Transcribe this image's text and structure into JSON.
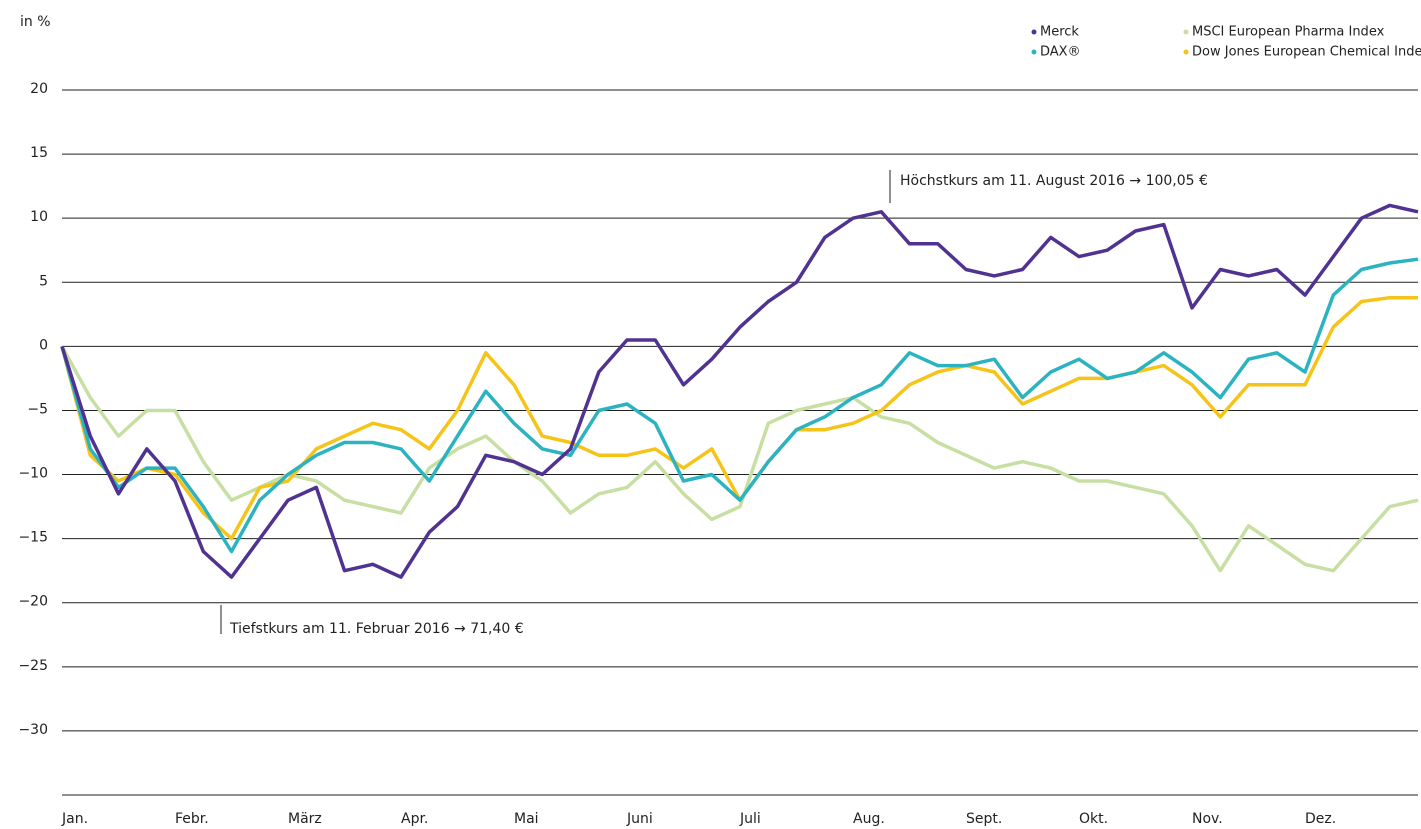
{
  "chart_data": {
    "type": "line",
    "y_label": "in %",
    "categories": [
      "Jan.",
      null,
      null,
      null,
      "Febr.",
      null,
      null,
      null,
      "März",
      null,
      null,
      null,
      "Apr.",
      null,
      null,
      null,
      "Mai",
      null,
      null,
      null,
      "Juni",
      null,
      null,
      null,
      "Juli",
      null,
      null,
      null,
      "Aug.",
      null,
      null,
      null,
      "Sept.",
      null,
      null,
      null,
      "Okt.",
      null,
      null,
      null,
      "Nov.",
      null,
      null,
      null,
      "Dez.",
      null,
      null,
      null,
      null
    ],
    "ylim": [
      -35,
      20
    ],
    "yticks": [
      20,
      15,
      10,
      5,
      0,
      {
        "value": -5,
        "label": "−5"
      },
      {
        "value": -10,
        "label": "−10"
      },
      {
        "value": -15,
        "label": "−15"
      },
      {
        "value": -20,
        "label": "−20"
      },
      {
        "value": -25,
        "label": "−25"
      },
      {
        "value": -30,
        "label": "−30"
      }
    ],
    "grid": true,
    "legend": "top-right",
    "series": [
      {
        "name": "MSCI European Pharma Index",
        "color": "#c8dfa3",
        "values": [
          0,
          -4,
          -7,
          -5,
          -5,
          -9,
          -12,
          -11,
          -10,
          -10.5,
          -12,
          -12.5,
          -13,
          -9.5,
          -8,
          -7,
          -9,
          -10.5,
          -13,
          -11.5,
          -11,
          -9,
          -11.5,
          -13.5,
          -12.5,
          -6,
          -5,
          -4.5,
          -4,
          -5.5,
          -6,
          -7.5,
          -8.5,
          -9.5,
          -9,
          -9.5,
          -10.5,
          -10.5,
          -11,
          -11.5,
          -14,
          -17.5,
          -14,
          -15.5,
          -17,
          -17.5,
          -15,
          -12.5,
          -12
        ]
      },
      {
        "name": "Dow Jones European Chemical Index",
        "color": "#f6c419",
        "values": [
          0,
          -8.5,
          -10.5,
          -9.5,
          -10,
          -13,
          -15,
          -11,
          -10.5,
          -8,
          -7,
          -6,
          -6.5,
          -8,
          -5,
          -0.5,
          -3,
          -7,
          -7.5,
          -8.5,
          -8.5,
          -8,
          -9.5,
          -8,
          -12,
          -9,
          -6.5,
          -6.5,
          -6,
          -5,
          -3,
          -2,
          -1.5,
          -2,
          -4.5,
          -3.5,
          -2.5,
          -2.5,
          -2,
          -1.5,
          -3,
          -5.5,
          -3,
          -3,
          -3,
          1.5,
          3.5,
          3.8,
          3.8
        ]
      },
      {
        "name": "DAX®",
        "color": "#2cb3c2",
        "values": [
          0,
          -8,
          -11,
          -9.5,
          -9.5,
          -12.5,
          -16,
          -12,
          -10,
          -8.5,
          -7.5,
          -7.5,
          -8,
          -10.5,
          -7,
          -3.5,
          -6,
          -8,
          -8.5,
          -5,
          -4.5,
          -6,
          -10.5,
          -10,
          -12,
          -9,
          -6.5,
          -5.5,
          -4,
          -3,
          -0.5,
          -1.5,
          -1.5,
          -1,
          -4,
          -2,
          -1,
          -2.5,
          -2,
          -0.5,
          -2,
          -4,
          -1,
          -0.5,
          -2,
          4,
          6,
          6.5,
          6.8
        ]
      },
      {
        "name": "Merck",
        "color": "#503291",
        "values": [
          0,
          -7,
          -11.5,
          -8,
          -10.5,
          -16,
          -18,
          -15,
          -12,
          -11,
          -17.5,
          -17,
          -18,
          -14.5,
          -12.5,
          -8.5,
          -9,
          -10,
          -8,
          -2,
          0.5,
          0.5,
          -3,
          -1,
          1.5,
          3.5,
          5,
          8.5,
          10,
          10.5,
          8,
          8,
          6,
          5.5,
          6,
          8.5,
          7,
          7.5,
          9,
          9.5,
          3,
          6,
          5.5,
          6,
          4,
          7,
          10,
          11,
          10.5
        ]
      }
    ],
    "annotations": [
      {
        "text": "Höchstkurs am 11. August 2016 → 100,05 €"
      },
      {
        "text": "Tiefstkurs am 11. Februar 2016 → 71,40 €"
      }
    ]
  }
}
